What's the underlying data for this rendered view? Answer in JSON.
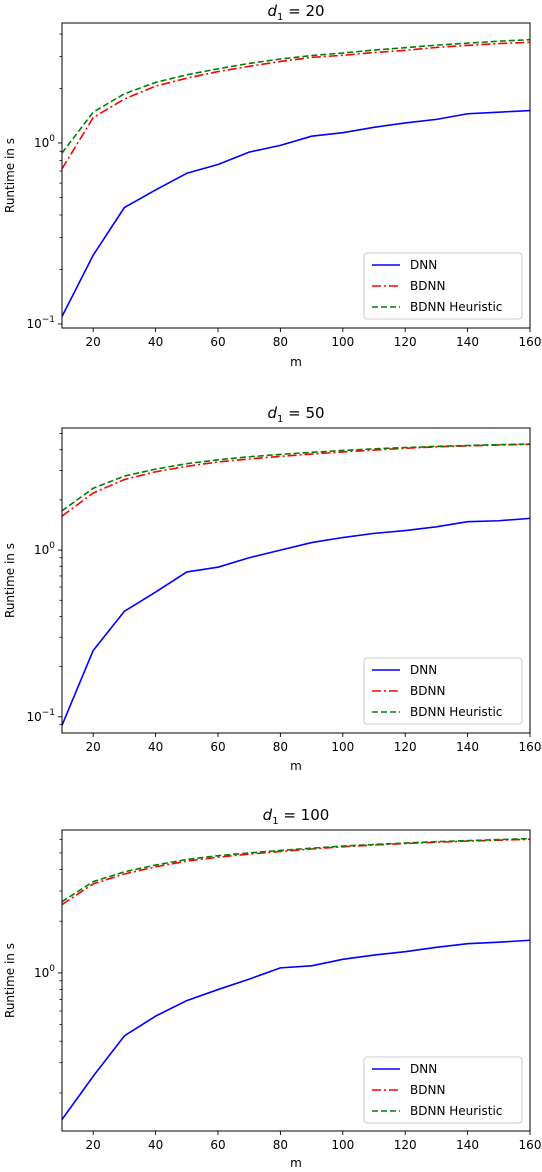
{
  "chart_data": [
    {
      "type": "line",
      "title_var": "d",
      "title_sub": "1",
      "title_rest": " = 20",
      "xlabel": "m",
      "ylabel": "Runtime in s",
      "y_scale": "log",
      "xlim": [
        10,
        160
      ],
      "ylim": [
        0.095,
        4.6
      ],
      "x_ticks": [
        "20",
        "40",
        "60",
        "80",
        "100",
        "120",
        "140",
        "160"
      ],
      "y_ticks": [
        {
          "base": "10",
          "exp": "−1"
        },
        {
          "base": "10",
          "exp": "0"
        }
      ],
      "legend_position": "lower-right",
      "x": [
        10,
        20,
        30,
        40,
        50,
        60,
        70,
        80,
        90,
        100,
        110,
        120,
        130,
        140,
        150,
        160
      ],
      "series": [
        {
          "name": "DNN",
          "color": "#0000ff",
          "style": "solid",
          "values": [
            0.11,
            0.24,
            0.44,
            0.55,
            0.68,
            0.76,
            0.89,
            0.97,
            1.09,
            1.14,
            1.22,
            1.29,
            1.35,
            1.45,
            1.48,
            1.51
          ]
        },
        {
          "name": "BDNN",
          "color": "#ff0000",
          "style": "dashdot",
          "values": [
            0.72,
            1.38,
            1.75,
            2.06,
            2.28,
            2.48,
            2.65,
            2.82,
            2.97,
            3.05,
            3.16,
            3.25,
            3.37,
            3.46,
            3.54,
            3.6
          ]
        },
        {
          "name": "BDNN Heuristic",
          "color": "#008000",
          "style": "dashed",
          "values": [
            0.88,
            1.48,
            1.87,
            2.16,
            2.38,
            2.57,
            2.75,
            2.91,
            3.04,
            3.14,
            3.26,
            3.36,
            3.47,
            3.56,
            3.65,
            3.72
          ]
        }
      ]
    },
    {
      "type": "line",
      "title_var": "d",
      "title_sub": "1",
      "title_rest": " = 50",
      "xlabel": "m",
      "ylabel": "Runtime in s",
      "y_scale": "log",
      "xlim": [
        10,
        160
      ],
      "ylim": [
        0.08,
        5.4
      ],
      "x_ticks": [
        "20",
        "40",
        "60",
        "80",
        "100",
        "120",
        "140",
        "160"
      ],
      "y_ticks": [
        {
          "base": "10",
          "exp": "−1"
        },
        {
          "base": "10",
          "exp": "0"
        }
      ],
      "legend_position": "lower-right",
      "x": [
        10,
        20,
        30,
        40,
        50,
        60,
        70,
        80,
        90,
        100,
        110,
        120,
        130,
        140,
        150,
        160
      ],
      "series": [
        {
          "name": "DNN",
          "color": "#0000ff",
          "style": "solid",
          "values": [
            0.089,
            0.25,
            0.43,
            0.56,
            0.74,
            0.79,
            0.9,
            1.0,
            1.11,
            1.19,
            1.26,
            1.31,
            1.38,
            1.48,
            1.5,
            1.55
          ]
        },
        {
          "name": "BDNN",
          "color": "#ff0000",
          "style": "dashdot",
          "values": [
            1.6,
            2.2,
            2.65,
            2.95,
            3.18,
            3.38,
            3.52,
            3.65,
            3.77,
            3.88,
            3.98,
            4.08,
            4.16,
            4.22,
            4.27,
            4.31
          ]
        },
        {
          "name": "BDNN Heuristic",
          "color": "#008000",
          "style": "dashed",
          "values": [
            1.72,
            2.35,
            2.78,
            3.06,
            3.3,
            3.48,
            3.63,
            3.75,
            3.86,
            3.96,
            4.05,
            4.12,
            4.19,
            4.24,
            4.29,
            4.33
          ]
        }
      ]
    },
    {
      "type": "line",
      "title_var": "d",
      "title_sub": "1",
      "title_rest": " = 100",
      "xlabel": "m",
      "ylabel": "Runtime in s",
      "y_scale": "log",
      "xlim": [
        10,
        160
      ],
      "ylim": [
        0.12,
        6.8
      ],
      "x_ticks": [
        "20",
        "40",
        "60",
        "80",
        "100",
        "120",
        "140",
        "160"
      ],
      "y_ticks": [
        {
          "base": "10",
          "exp": "0"
        }
      ],
      "legend_position": "lower-right",
      "x": [
        10,
        20,
        30,
        40,
        50,
        60,
        70,
        80,
        90,
        100,
        110,
        120,
        130,
        140,
        150,
        160
      ],
      "series": [
        {
          "name": "DNN",
          "color": "#0000ff",
          "style": "solid",
          "values": [
            0.14,
            0.25,
            0.43,
            0.56,
            0.69,
            0.8,
            0.92,
            1.07,
            1.1,
            1.2,
            1.27,
            1.33,
            1.41,
            1.48,
            1.51,
            1.55
          ]
        },
        {
          "name": "BDNN",
          "color": "#ff0000",
          "style": "dashdot",
          "values": [
            2.5,
            3.3,
            3.77,
            4.15,
            4.48,
            4.72,
            4.92,
            5.1,
            5.27,
            5.43,
            5.56,
            5.67,
            5.77,
            5.86,
            5.93,
            6.0
          ]
        },
        {
          "name": "BDNN Heuristic",
          "color": "#008000",
          "style": "dashed",
          "values": [
            2.6,
            3.4,
            3.88,
            4.25,
            4.58,
            4.82,
            5.0,
            5.17,
            5.33,
            5.48,
            5.6,
            5.71,
            5.81,
            5.9,
            5.98,
            6.06
          ]
        }
      ]
    }
  ]
}
